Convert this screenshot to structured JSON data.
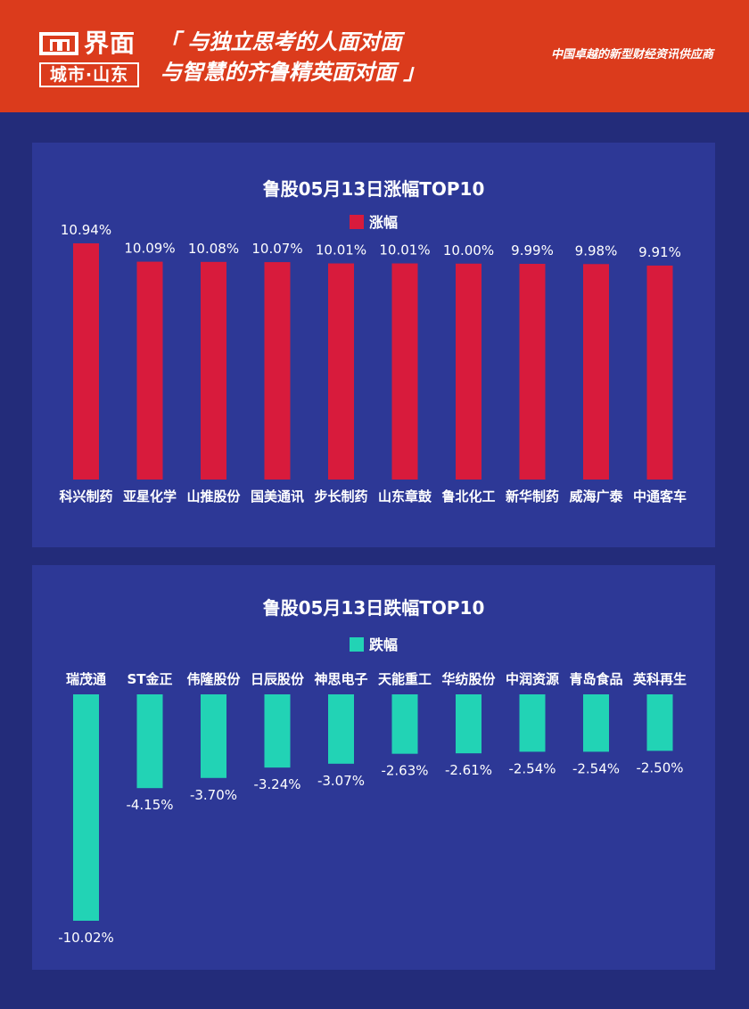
{
  "header": {
    "logo_name": "界面",
    "logo_city": "城市·山东",
    "slogan_line1": "「 与独立思考的人面对面",
    "slogan_line2": "与智慧的齐鲁精英面对面 」",
    "tagline": "中国卓越的新型财经资讯供应商"
  },
  "colors": {
    "header_bg": "#db3b1c",
    "page_bg": "#232c7a",
    "panel_bg": "#2d3896",
    "gain": "#d81b3c",
    "loss": "#22d3b5"
  },
  "chart_data": [
    {
      "type": "bar",
      "title": "鲁股05月13日涨幅TOP10",
      "categories": [
        "科兴制药",
        "亚星化学",
        "山推股份",
        "国美通讯",
        "步长制药",
        "山东章鼓",
        "鲁北化工",
        "新华制药",
        "威海广泰",
        "中通客车"
      ],
      "series": [
        {
          "name": "涨幅",
          "values": [
            10.94,
            10.09,
            10.08,
            10.07,
            10.01,
            10.01,
            10.0,
            9.99,
            9.98,
            9.91
          ],
          "labels": [
            "10.94%",
            "10.09%",
            "10.08%",
            "10.07%",
            "10.01%",
            "10.01%",
            "10.00%",
            "9.99%",
            "9.98%",
            "9.91%"
          ]
        }
      ],
      "ylim": [
        0,
        10.94
      ],
      "legend": "top-center",
      "grid": false
    },
    {
      "type": "bar",
      "title": "鲁股05月13日跌幅TOP10",
      "categories": [
        "瑞茂通",
        "ST金正",
        "伟隆股份",
        "日辰股份",
        "神思电子",
        "天能重工",
        "华纺股份",
        "中润资源",
        "青岛食品",
        "英科再生"
      ],
      "series": [
        {
          "name": "跌幅",
          "values": [
            -10.02,
            -4.15,
            -3.7,
            -3.24,
            -3.07,
            -2.63,
            -2.61,
            -2.54,
            -2.54,
            -2.5
          ],
          "labels": [
            "-10.02%",
            "-4.15%",
            "-3.70%",
            "-3.24%",
            "-3.07%",
            "-2.63%",
            "-2.61%",
            "-2.54%",
            "-2.54%",
            "-2.50%"
          ]
        }
      ],
      "ylim": [
        -10.02,
        0
      ],
      "legend": "top-center",
      "grid": false
    }
  ]
}
